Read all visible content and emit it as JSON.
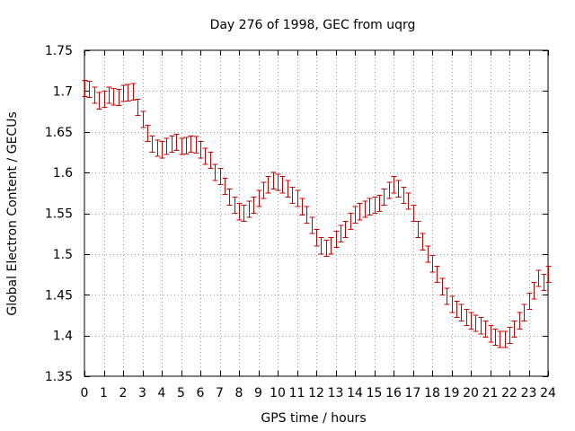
{
  "chart_data": {
    "type": "line",
    "title": "Day 276 of 1998, GEC from uqrg",
    "xlabel": "GPS time / hours",
    "ylabel": "Global Electron Content / GECUs",
    "xlim": [
      0,
      24
    ],
    "ylim": [
      1.35,
      1.75
    ],
    "grid": true,
    "legend": "none",
    "color": "#cc0000",
    "x_ticks": [
      "0",
      "1",
      "2",
      "3",
      "4",
      "5",
      "6",
      "7",
      "8",
      "9",
      "10",
      "11",
      "12",
      "13",
      "14",
      "15",
      "16",
      "17",
      "18",
      "19",
      "20",
      "21",
      "22",
      "23",
      "24"
    ],
    "y_ticks": [
      "1.35",
      "1.4",
      "1.45",
      "1.5",
      "1.55",
      "1.6",
      "1.65",
      "1.7",
      "1.75"
    ],
    "series": [
      {
        "name": "GEC",
        "error": 0.01,
        "x": [
          0.0,
          0.25,
          0.5,
          0.75,
          1.0,
          1.25,
          1.5,
          1.75,
          2.0,
          2.25,
          2.5,
          2.75,
          3.0,
          3.25,
          3.5,
          3.75,
          4.0,
          4.25,
          4.5,
          4.75,
          5.0,
          5.25,
          5.5,
          5.75,
          6.0,
          6.25,
          6.5,
          6.75,
          7.0,
          7.25,
          7.5,
          7.75,
          8.0,
          8.25,
          8.5,
          8.75,
          9.0,
          9.25,
          9.5,
          9.75,
          10.0,
          10.25,
          10.5,
          10.75,
          11.0,
          11.25,
          11.5,
          11.75,
          12.0,
          12.25,
          12.5,
          12.75,
          13.0,
          13.25,
          13.5,
          13.75,
          14.0,
          14.25,
          14.5,
          14.75,
          15.0,
          15.25,
          15.5,
          15.75,
          16.0,
          16.25,
          16.5,
          16.75,
          17.0,
          17.25,
          17.5,
          17.75,
          18.0,
          18.25,
          18.5,
          18.75,
          19.0,
          19.25,
          19.5,
          19.75,
          20.0,
          20.25,
          20.5,
          20.75,
          21.0,
          21.25,
          21.5,
          21.75,
          22.0,
          22.25,
          22.5,
          22.75,
          23.0,
          23.25,
          23.5,
          23.75,
          24.0
        ],
        "y": [
          1.703,
          1.702,
          1.695,
          1.688,
          1.69,
          1.695,
          1.693,
          1.692,
          1.697,
          1.698,
          1.699,
          1.68,
          1.665,
          1.648,
          1.635,
          1.63,
          1.628,
          1.632,
          1.635,
          1.637,
          1.632,
          1.633,
          1.635,
          1.634,
          1.628,
          1.62,
          1.615,
          1.6,
          1.595,
          1.583,
          1.57,
          1.56,
          1.552,
          1.55,
          1.555,
          1.56,
          1.568,
          1.578,
          1.585,
          1.59,
          1.588,
          1.585,
          1.58,
          1.572,
          1.568,
          1.558,
          1.548,
          1.535,
          1.52,
          1.51,
          1.507,
          1.51,
          1.518,
          1.525,
          1.53,
          1.54,
          1.548,
          1.552,
          1.555,
          1.558,
          1.56,
          1.562,
          1.57,
          1.578,
          1.585,
          1.58,
          1.572,
          1.565,
          1.55,
          1.53,
          1.515,
          1.5,
          1.488,
          1.475,
          1.46,
          1.448,
          1.438,
          1.432,
          1.428,
          1.422,
          1.418,
          1.415,
          1.412,
          1.408,
          1.402,
          1.398,
          1.395,
          1.395,
          1.4,
          1.408,
          1.418,
          1.428,
          1.442,
          1.455,
          1.47,
          1.465,
          1.475
        ]
      }
    ]
  }
}
